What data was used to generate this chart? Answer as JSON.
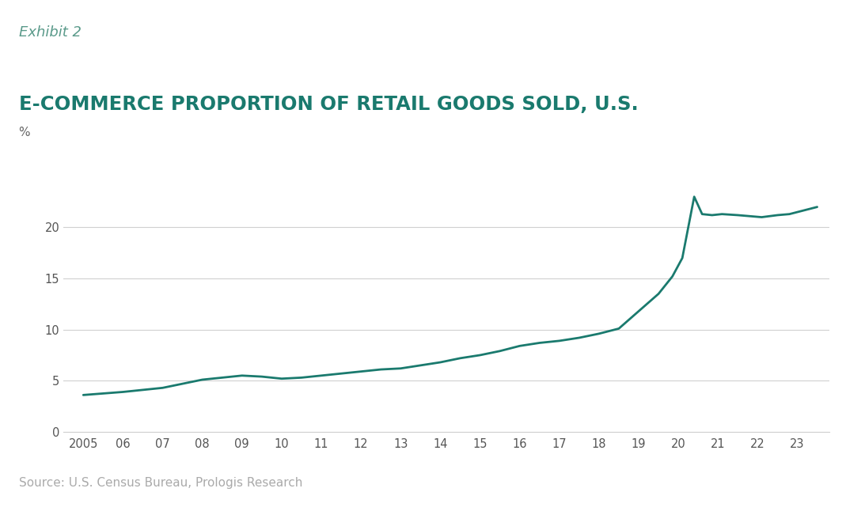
{
  "title": "E-COMMERCE PROPORTION OF RETAIL GOODS SOLD, U.S.",
  "exhibit_label": "Exhibit 2",
  "ylabel": "%",
  "source": "Source: U.S. Census Bureau, Prologis Research",
  "banner_color": "#e8e8e8",
  "body_color": "#ffffff",
  "line_color": "#1a7a6e",
  "line_width": 2.0,
  "title_color": "#1a7a6e",
  "exhibit_color": "#5a9a8a",
  "source_color": "#aaaaaa",
  "x_ticks": [
    2005,
    2006,
    2007,
    2008,
    2009,
    2010,
    2011,
    2012,
    2013,
    2014,
    2015,
    2016,
    2017,
    2018,
    2019,
    2020,
    2021,
    2022,
    2023
  ],
  "x_tick_labels": [
    "2005",
    "06",
    "07",
    "08",
    "09",
    "10",
    "11",
    "12",
    "13",
    "14",
    "15",
    "16",
    "17",
    "18",
    "19",
    "20",
    "21",
    "22",
    "23"
  ],
  "ylim": [
    0,
    25
  ],
  "y_ticks": [
    0,
    5,
    10,
    15,
    20
  ],
  "xlim": [
    2004.5,
    2023.8
  ],
  "years_data": [
    2005,
    2006,
    2007,
    2008,
    2008.5,
    2009,
    2009.5,
    2010,
    2010.5,
    2011,
    2011.5,
    2012,
    2012.5,
    2013,
    2013.5,
    2014,
    2014.5,
    2015,
    2015.5,
    2016,
    2016.5,
    2017,
    2017.5,
    2018,
    2018.5,
    2019,
    2019.5,
    2019.85,
    2020.1,
    2020.4,
    2020.6,
    2020.85,
    2021.1,
    2021.5,
    2021.8,
    2022.1,
    2022.5,
    2022.8,
    2023.1,
    2023.5
  ],
  "values_data": [
    3.6,
    3.9,
    4.3,
    5.1,
    5.3,
    5.5,
    5.4,
    5.2,
    5.3,
    5.5,
    5.7,
    5.9,
    6.1,
    6.2,
    6.5,
    6.8,
    7.2,
    7.5,
    7.9,
    8.4,
    8.7,
    8.9,
    9.2,
    9.6,
    10.1,
    11.8,
    13.5,
    15.2,
    17.0,
    23.0,
    21.3,
    21.2,
    21.3,
    21.2,
    21.1,
    21.0,
    21.2,
    21.3,
    21.6,
    22.0
  ]
}
